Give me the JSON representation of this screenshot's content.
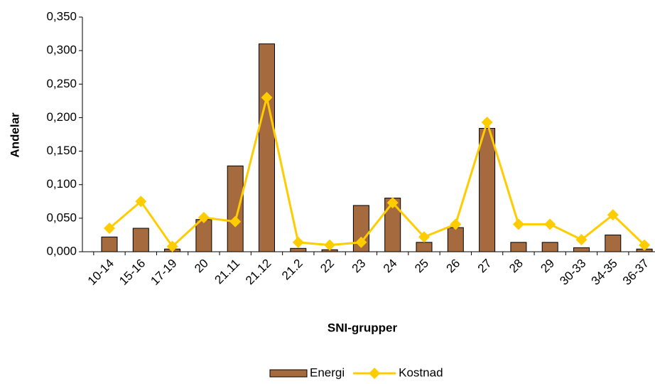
{
  "chart_data": {
    "type": "bar",
    "x_label": "SNI-grupper",
    "y_label": "Andelar",
    "categories": [
      "10-14",
      "15-16",
      "17-19",
      "20",
      "21.11",
      "21.12",
      "21.2",
      "22",
      "23",
      "24",
      "25",
      "26",
      "27",
      "28",
      "29",
      "30-33",
      "34-35",
      "36-37"
    ],
    "series": [
      {
        "name": "Energi",
        "type": "bar",
        "color": "#a56b3f",
        "values": [
          0.022,
          0.035,
          0.004,
          0.048,
          0.128,
          0.31,
          0.005,
          0.003,
          0.069,
          0.08,
          0.014,
          0.036,
          0.184,
          0.014,
          0.014,
          0.006,
          0.025,
          0.004
        ]
      },
      {
        "name": "Kostnad",
        "type": "line",
        "color": "#ffcc00",
        "values": [
          0.035,
          0.075,
          0.008,
          0.051,
          0.045,
          0.23,
          0.014,
          0.01,
          0.014,
          0.073,
          0.022,
          0.041,
          0.193,
          0.041,
          0.041,
          0.018,
          0.055,
          0.01
        ]
      }
    ],
    "ylim": [
      0,
      0.35
    ],
    "yticks": [
      {
        "value": 0,
        "label": "0,000"
      },
      {
        "value": 0.05,
        "label": "0,050"
      },
      {
        "value": 0.1,
        "label": "0,100"
      },
      {
        "value": 0.15,
        "label": "0,150"
      },
      {
        "value": 0.2,
        "label": "0,200"
      },
      {
        "value": 0.25,
        "label": "0,250"
      },
      {
        "value": 0.3,
        "label": "0,300"
      },
      {
        "value": 0.35,
        "label": "0,350"
      }
    ],
    "grid": false,
    "legend": "bottom"
  }
}
